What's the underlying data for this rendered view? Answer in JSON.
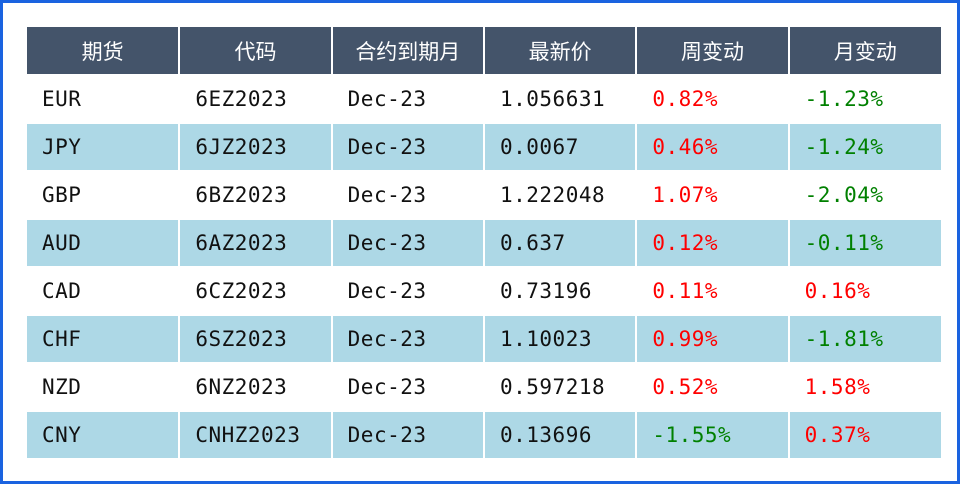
{
  "headers": [
    "期货",
    "代码",
    "合约到期月",
    "最新价",
    "周变动",
    "月变动"
  ],
  "rows": [
    {
      "sym": "EUR",
      "code": "6EZ2023",
      "expiry": "Dec-23",
      "price": "1.056631",
      "week": "0.82%",
      "month": "-1.23%"
    },
    {
      "sym": "JPY",
      "code": "6JZ2023",
      "expiry": "Dec-23",
      "price": "0.0067",
      "week": "0.46%",
      "month": "-1.24%"
    },
    {
      "sym": "GBP",
      "code": "6BZ2023",
      "expiry": "Dec-23",
      "price": "1.222048",
      "week": "1.07%",
      "month": "-2.04%"
    },
    {
      "sym": "AUD",
      "code": "6AZ2023",
      "expiry": "Dec-23",
      "price": "0.637",
      "week": "0.12%",
      "month": "-0.11%"
    },
    {
      "sym": "CAD",
      "code": "6CZ2023",
      "expiry": "Dec-23",
      "price": "0.73196",
      "week": "0.11%",
      "month": "0.16%"
    },
    {
      "sym": "CHF",
      "code": "6SZ2023",
      "expiry": "Dec-23",
      "price": "1.10023",
      "week": "0.99%",
      "month": "-1.81%"
    },
    {
      "sym": "NZD",
      "code": "6NZ2023",
      "expiry": "Dec-23",
      "price": "0.597218",
      "week": "0.52%",
      "month": "1.58%"
    },
    {
      "sym": "CNY",
      "code": "CNHZ2023",
      "expiry": "Dec-23",
      "price": "0.13696",
      "week": "-1.55%",
      "month": "0.37%"
    }
  ],
  "colors": {
    "header_bg": "#44546a",
    "band_bg": "#add8e6",
    "border": "#1a63e0",
    "positive": "#ff0000",
    "negative": "#008000"
  }
}
